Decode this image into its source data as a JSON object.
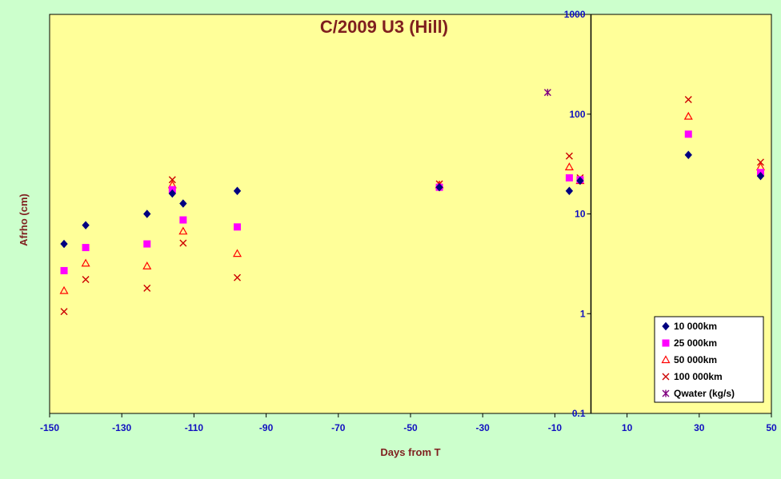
{
  "chart_data": {
    "type": "scatter",
    "title": "C/2009 U3 (Hill)",
    "xlabel": "Days from T",
    "ylabel": "Afrho (cm)",
    "xlim": [
      -150,
      50
    ],
    "ylim": [
      0.1,
      1000
    ],
    "yscale": "log",
    "x_ticks": [
      "-150",
      "-130",
      "-110",
      "-90",
      "-70",
      "-50",
      "-30",
      "-10",
      "10",
      "30",
      "50"
    ],
    "y_ticks": [
      "0.1",
      "1",
      "10",
      "100",
      "1000"
    ],
    "y_axis_position": "x=0",
    "grid": false,
    "legend_position": "bottom-right",
    "colors": {
      "plot_bg": "#ffff99",
      "page_bg": "#ccffcc",
      "title": "#7f1f1f",
      "ticks": "#1010c0"
    },
    "series": [
      {
        "name": "10 000km",
        "marker": "diamond",
        "color": "#000080",
        "x": [
          -146,
          -140,
          -123,
          -116,
          -113,
          -98,
          -42,
          -6,
          -3,
          27,
          47
        ],
        "y": [
          5.0,
          7.7,
          10.0,
          16.0,
          12.7,
          17.0,
          18.5,
          17.0,
          21.5,
          39.0,
          24.0
        ]
      },
      {
        "name": "25 000km",
        "marker": "square",
        "color": "#ff00ff",
        "x": [
          -146,
          -140,
          -123,
          -116,
          -113,
          -98,
          -42,
          -6,
          -3,
          27,
          47
        ],
        "y": [
          2.7,
          4.6,
          5.0,
          17.5,
          8.7,
          7.4,
          18.5,
          23.0,
          22.0,
          63.0,
          26.0
        ]
      },
      {
        "name": "50 000km",
        "marker": "triangle",
        "color": "#ff0000",
        "x": [
          -146,
          -140,
          -123,
          -116,
          -113,
          -98,
          -42,
          -6,
          -3,
          27,
          47
        ],
        "y": [
          1.7,
          3.2,
          3.0,
          19.5,
          6.7,
          4.0,
          19.5,
          29.5,
          21.5,
          95.0,
          29.5
        ]
      },
      {
        "name": "100 000km",
        "marker": "x",
        "color": "#cc0000",
        "x": [
          -146,
          -140,
          -123,
          -116,
          -113,
          -98,
          -42,
          -6,
          -3,
          27,
          47
        ],
        "y": [
          1.05,
          2.2,
          1.8,
          22.0,
          5.1,
          2.3,
          20.0,
          38.0,
          23.0,
          140.0,
          33.0
        ]
      },
      {
        "name": "Qwater (kg/s)",
        "marker": "star",
        "color": "#800080",
        "x": [
          -12
        ],
        "y": [
          165
        ]
      }
    ]
  }
}
